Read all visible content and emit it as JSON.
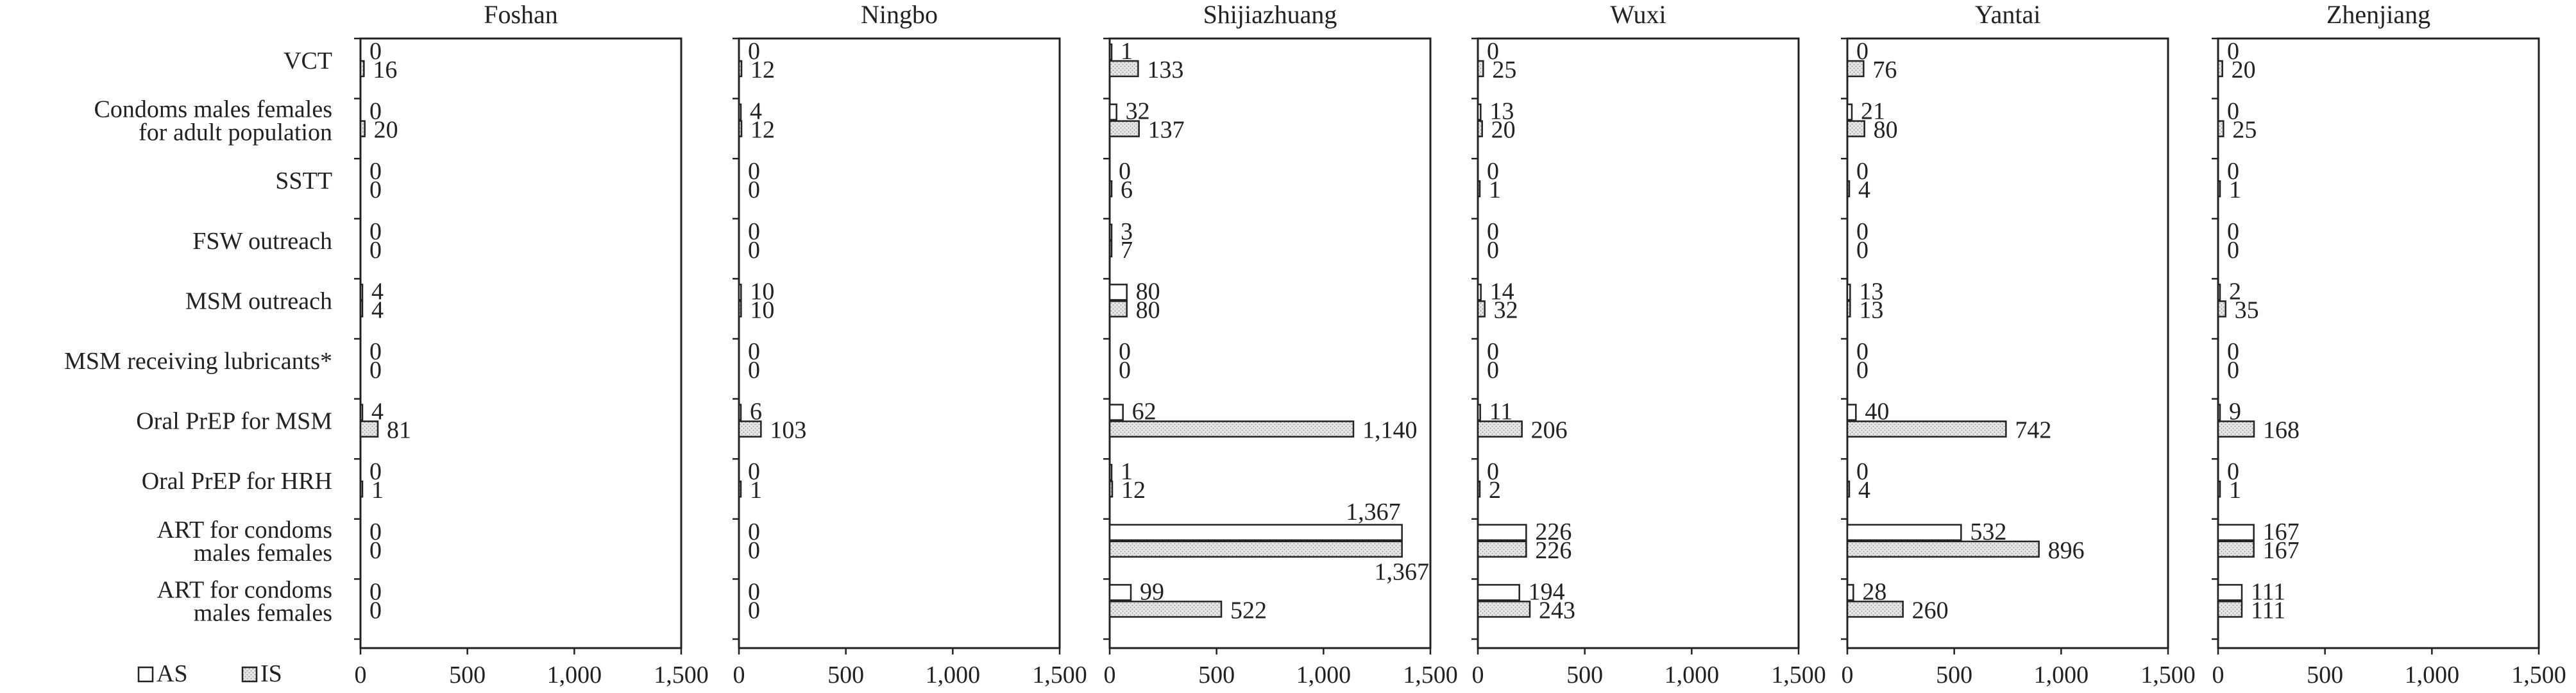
{
  "chart_data": {
    "type": "bar",
    "orientation": "horizontal",
    "categories": [
      [
        "VCT"
      ],
      [
        "Condoms males females",
        "for adult population"
      ],
      [
        "SSTT"
      ],
      [
        "FSW outreach"
      ],
      [
        "MSM outreach"
      ],
      [
        "MSM receiving lubricants*"
      ],
      [
        "Oral PrEP for MSM"
      ],
      [
        "Oral PrEP for HRH"
      ],
      [
        "ART for condoms",
        "males females"
      ],
      [
        "ART for condoms",
        "males females"
      ]
    ],
    "series_meta": [
      {
        "name": "AS",
        "fill": "#ffffff",
        "pattern": "none"
      },
      {
        "name": "IS",
        "fill": "#e4e4e4",
        "pattern": "dots"
      }
    ],
    "xlim": [
      0,
      1500
    ],
    "xticks": [
      0,
      500,
      1000,
      1500
    ],
    "xtick_labels": [
      "0",
      "500",
      "1,000",
      "1,500"
    ],
    "grid": false,
    "legend_position": "bottom-left",
    "panels": [
      {
        "title": "Foshan",
        "AS": [
          0,
          0,
          0,
          0,
          4,
          0,
          4,
          0,
          0,
          0
        ],
        "IS": [
          16,
          20,
          0,
          0,
          4,
          0,
          81,
          1,
          0,
          0
        ],
        "AS_labels": [
          "0",
          "0",
          "0",
          "0",
          "4",
          "0",
          "4",
          "0",
          "0",
          "0"
        ],
        "IS_labels": [
          "16",
          "20",
          "0",
          "0",
          "4",
          "0",
          "81",
          "1",
          "0",
          "0"
        ]
      },
      {
        "title": "Ningbo",
        "AS": [
          0,
          4,
          0,
          0,
          10,
          0,
          6,
          0,
          0,
          0
        ],
        "IS": [
          12,
          12,
          0,
          0,
          10,
          0,
          103,
          1,
          0,
          0
        ],
        "AS_labels": [
          "0",
          "4",
          "0",
          "0",
          "10",
          "0",
          "6",
          "0",
          "0",
          "0"
        ],
        "IS_labels": [
          "12",
          "12",
          "0",
          "0",
          "10",
          "0",
          "103",
          "1",
          "0",
          "0"
        ]
      },
      {
        "title": "Shijiazhuang",
        "AS": [
          1,
          32,
          0,
          3,
          80,
          0,
          62,
          1,
          1367,
          99
        ],
        "IS": [
          133,
          137,
          6,
          7,
          80,
          0,
          1140,
          12,
          1367,
          522
        ],
        "AS_labels": [
          "1",
          "32",
          "0",
          "3",
          "80",
          "0",
          "62",
          "1",
          "1,367",
          "99"
        ],
        "IS_labels": [
          "133",
          "137",
          "6",
          "7",
          "80",
          "0",
          "1,140",
          "12",
          "",
          "522"
        ],
        "extra_labels": [
          {
            "text": "1,367",
            "row": 9,
            "series": "AS"
          }
        ]
      },
      {
        "title": "Wuxi",
        "AS": [
          0,
          13,
          0,
          0,
          14,
          0,
          11,
          0,
          226,
          194
        ],
        "IS": [
          25,
          20,
          1,
          0,
          32,
          0,
          206,
          2,
          226,
          243
        ],
        "AS_labels": [
          "0",
          "13",
          "0",
          "0",
          "14",
          "0",
          "11",
          "0",
          "226",
          "194"
        ],
        "IS_labels": [
          "25",
          "20",
          "1",
          "0",
          "32",
          "0",
          "206",
          "2",
          "226",
          "243"
        ]
      },
      {
        "title": "Yantai",
        "AS": [
          0,
          21,
          0,
          0,
          13,
          0,
          40,
          0,
          532,
          28
        ],
        "IS": [
          76,
          80,
          4,
          0,
          13,
          0,
          742,
          4,
          896,
          260
        ],
        "AS_labels": [
          "0",
          "21",
          "0",
          "0",
          "13",
          "0",
          "40",
          "0",
          "532",
          "28"
        ],
        "IS_labels": [
          "76",
          "80",
          "4",
          "0",
          "13",
          "0",
          "742",
          "4",
          "896",
          "260"
        ]
      },
      {
        "title": "Zhenjiang",
        "AS": [
          0,
          0,
          0,
          0,
          2,
          0,
          9,
          0,
          167,
          111
        ],
        "IS": [
          20,
          25,
          1,
          0,
          35,
          0,
          168,
          1,
          167,
          111
        ],
        "AS_labels": [
          "0",
          "0",
          "0",
          "0",
          "2",
          "0",
          "9",
          "0",
          "167",
          "111"
        ],
        "IS_labels": [
          "20",
          "25",
          "1",
          "0",
          "35",
          "0",
          "168",
          "1",
          "167",
          "111"
        ]
      }
    ]
  }
}
